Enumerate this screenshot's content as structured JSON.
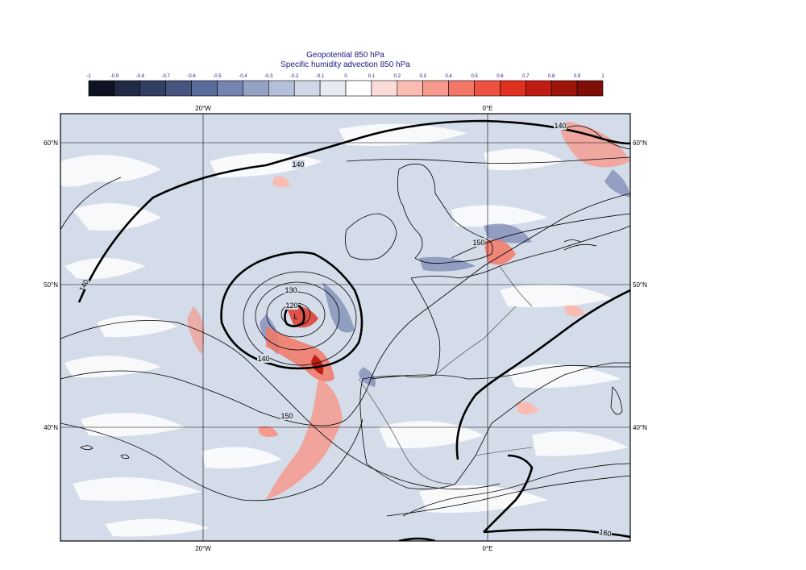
{
  "titles": {
    "line1": "Geopotential 850 hPa",
    "line2": "Specific humidity advection 850 hPa"
  },
  "colorbar": {
    "ticks": [
      "-1",
      "-0.9",
      "-0.8",
      "-0.7",
      "-0.6",
      "-0.5",
      "-0.4",
      "-0.3",
      "-0.2",
      "-0.1",
      "0",
      "0.1",
      "0.2",
      "0.3",
      "0.4",
      "0.5",
      "0.6",
      "0.7",
      "0.8",
      "0.9",
      "1"
    ],
    "colors": [
      "#0d1321",
      "#212b45",
      "#333f62",
      "#46547e",
      "#5a6b9a",
      "#7584b0",
      "#95a2c4",
      "#b4bfd8",
      "#d0d8e8",
      "#e6eaf3",
      "#ffffff",
      "#fcdcd8",
      "#f9bbb2",
      "#f59a8d",
      "#f27766",
      "#ee5240",
      "#e0301f",
      "#c01d12",
      "#9e150c",
      "#7d0f08"
    ]
  },
  "grid": {
    "lon_labels_top": [
      "20°W",
      "0°E"
    ],
    "lon_labels_bottom": [
      "20°W",
      "0°E"
    ],
    "lat_labels_left": [
      "60°N",
      "50°N",
      "40°N"
    ],
    "lat_labels_right": [
      "60°N",
      "50°N",
      "40°N"
    ]
  },
  "contours": {
    "labels": [
      "140",
      "140",
      "140",
      "150",
      "130",
      "120",
      "140",
      "150",
      "150",
      "160"
    ]
  },
  "low_marker": "L"
}
